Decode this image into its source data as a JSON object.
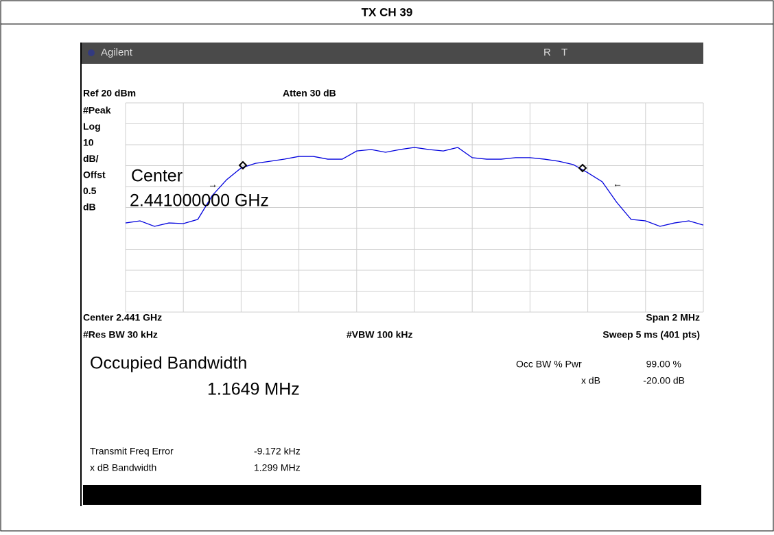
{
  "header": {
    "title": "TX CH 39"
  },
  "instrument": {
    "brand": "Agilent",
    "status": [
      "R",
      "T"
    ],
    "ref": "Ref 20 dBm",
    "atten": "Atten 30 dB",
    "side_labels": [
      "#Peak",
      "Log",
      "10",
      "dB/",
      "Offst",
      "0.5",
      "dB"
    ],
    "marker_label": "Center",
    "marker_freq": "2.441000000 GHz",
    "center": "Center 2.441 GHz",
    "span": "Span 2 MHz",
    "rbw": "#Res BW 30 kHz",
    "vbw": "#VBW 100 kHz",
    "sweep": "Sweep 5 ms (401 pts)",
    "occ_title": "Occupied Bandwidth",
    "occ_value": "1.1649 MHz",
    "occ_pwr_label": "Occ BW % Pwr",
    "occ_pwr_value": "99.00 %",
    "xdb_label": "x dB",
    "xdb_value": "-20.00 dB",
    "freq_err_label": "Transmit Freq Error",
    "freq_err_value": "-9.172 kHz",
    "xdb_bw_label": "x dB Bandwidth",
    "xdb_bw_value": "1.299 MHz"
  },
  "chart_data": {
    "type": "line",
    "color": "#0000dd",
    "xlim": [
      2.44,
      2.442
    ],
    "ylim": [
      -80,
      20
    ],
    "x": [
      2.44,
      2.44005,
      2.4401,
      2.44015,
      2.4402,
      2.44025,
      2.4403,
      2.44035,
      2.4404,
      2.44045,
      2.4405,
      2.44055,
      2.4406,
      2.44065,
      2.4407,
      2.44075,
      2.4408,
      2.44085,
      2.4409,
      2.44095,
      2.441,
      2.44105,
      2.4411,
      2.44115,
      2.4412,
      2.44125,
      2.4413,
      2.44135,
      2.4414,
      2.44145,
      2.4415,
      2.44155,
      2.4416,
      2.44165,
      2.4417,
      2.44175,
      2.4418,
      2.44185,
      2.4419,
      2.44195,
      2.442
    ],
    "values": [
      -37.4,
      -36.4,
      -39.0,
      -37.4,
      -37.7,
      -35.7,
      -24.3,
      -16.7,
      -11.1,
      -8.9,
      -7.9,
      -6.9,
      -5.6,
      -5.6,
      -6.9,
      -6.9,
      -3.0,
      -2.3,
      -3.6,
      -2.3,
      -1.3,
      -2.3,
      -3.0,
      -1.3,
      -6.2,
      -6.9,
      -6.9,
      -6.2,
      -6.2,
      -6.9,
      -7.9,
      -9.5,
      -13.4,
      -17.7,
      -27.5,
      -35.7,
      -36.4,
      -39.0,
      -37.4,
      -36.4,
      -38.4
    ]
  }
}
